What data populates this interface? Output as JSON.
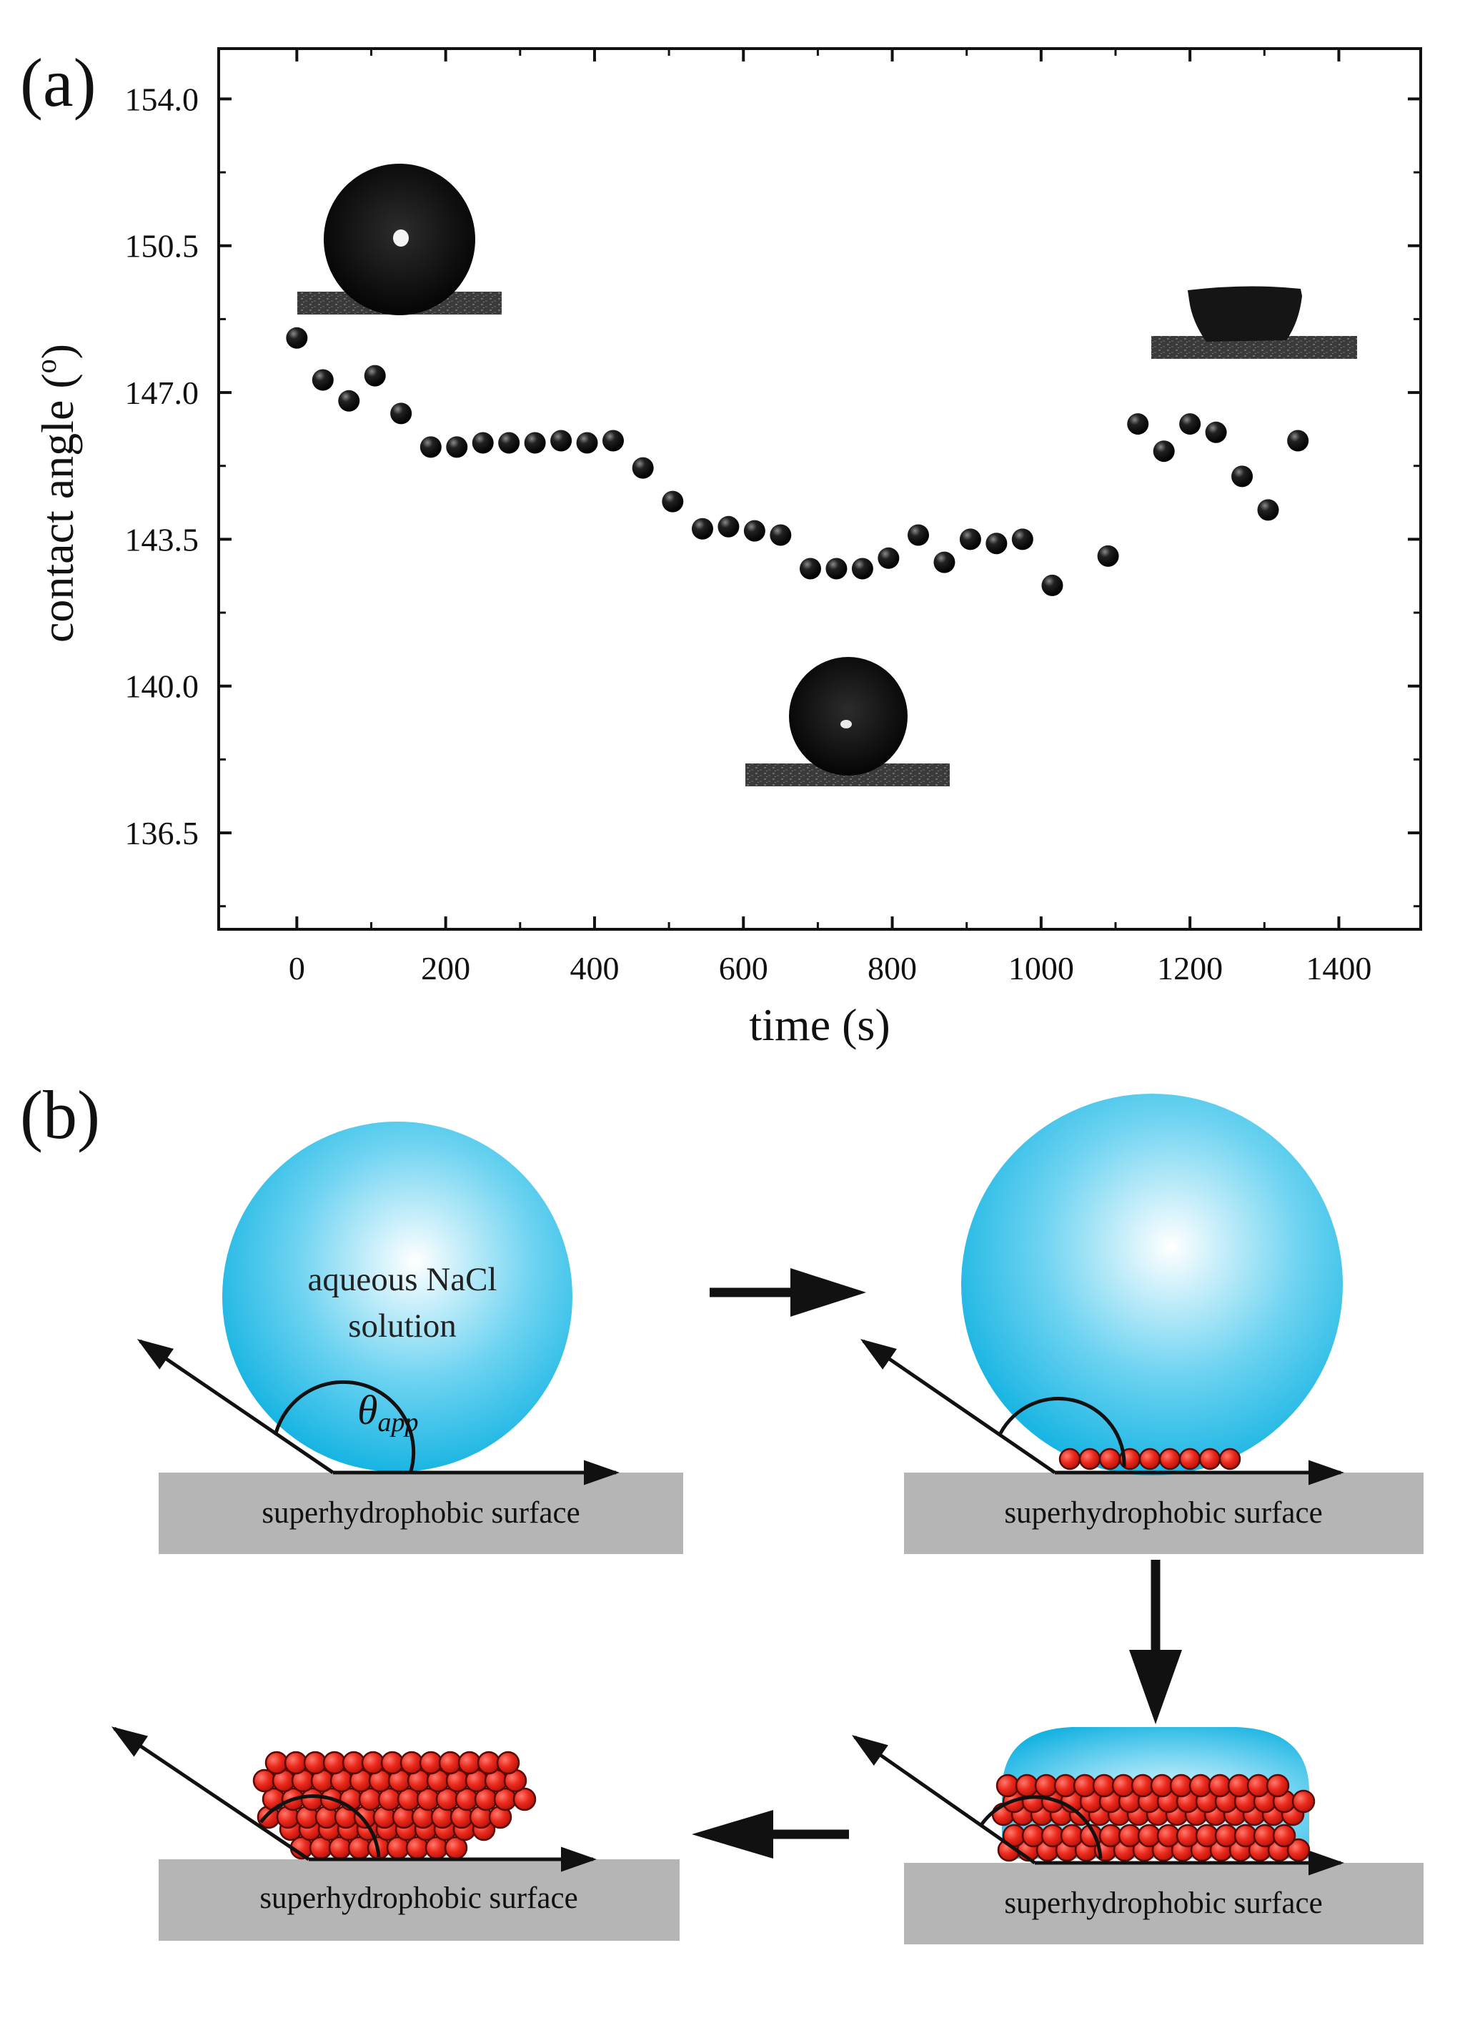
{
  "panel_a_label": "(a)",
  "panel_b_label": "(b)",
  "chart_data": {
    "type": "scatter",
    "title": "",
    "xlabel": "time (s)",
    "ylabel_main": "contact angle (",
    "ylabel_sup": "o",
    "ylabel_end": ")",
    "xlim": [
      -105,
      1510
    ],
    "ylim": [
      134.2,
      155.2
    ],
    "xticks": [
      0,
      200,
      400,
      600,
      800,
      1000,
      1200,
      1400
    ],
    "xtick_labels": [
      "0",
      "200",
      "400",
      "600",
      "800",
      "1000",
      "1200",
      "1400"
    ],
    "yticks": [
      136.5,
      140.0,
      143.5,
      147.0,
      150.5,
      154.0
    ],
    "ytick_labels": [
      "136.5",
      "140.0",
      "143.5",
      "147.0",
      "150.5",
      "154.0"
    ],
    "grid": false,
    "legend": "none",
    "marker_color": "#111111",
    "series": [
      {
        "x": [
          0,
          35,
          70,
          105,
          140,
          180,
          215,
          250,
          285,
          320,
          355,
          390,
          425,
          465,
          505,
          545,
          580,
          615,
          650,
          690,
          725,
          760,
          795,
          835,
          870,
          905,
          940,
          975,
          1015,
          1090,
          1130,
          1165,
          1200,
          1235,
          1270,
          1305,
          1345
        ],
        "y": [
          148.3,
          147.3,
          146.8,
          147.4,
          146.5,
          145.7,
          145.7,
          145.8,
          145.8,
          145.8,
          145.85,
          145.8,
          145.85,
          145.2,
          144.4,
          143.75,
          143.8,
          143.7,
          143.6,
          142.8,
          142.8,
          142.8,
          143.05,
          143.6,
          142.95,
          143.5,
          143.4,
          143.5,
          142.4,
          143.1,
          146.25,
          145.6,
          146.25,
          146.05,
          145.0,
          144.2,
          145.85
        ]
      }
    ]
  },
  "inset_photos": [
    {
      "name": "initial-droplet-photo",
      "description_shape": "spherical"
    },
    {
      "name": "middle-droplet-photo",
      "description_shape": "spherical"
    },
    {
      "name": "final-crystal-photo",
      "description_shape": "flattened"
    }
  ],
  "schematic": {
    "drop_label_line1": "aqueous NaCl",
    "drop_label_line2": "solution",
    "theta_symbol": "θ",
    "theta_subscript": "app",
    "surface_label": "superhydrophobic surface",
    "colors": {
      "droplet": "#19b6e3",
      "droplet_highlight": "#ffffff",
      "surface": "#b5b5b5",
      "crystal": "#e8241b",
      "crystal_outline": "#5a0a05",
      "arrow": "#111111"
    }
  }
}
